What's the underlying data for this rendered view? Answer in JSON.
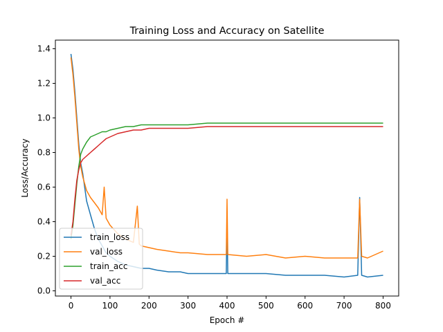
{
  "chart_data": {
    "type": "line",
    "title": "Training Loss and Accuracy on Satellite",
    "xlabel": "Epoch #",
    "ylabel": "Loss/Accuracy",
    "xlim": [
      -40,
      840
    ],
    "ylim": [
      -0.03,
      1.45
    ],
    "xticks": [
      0,
      100,
      200,
      300,
      400,
      500,
      600,
      700,
      800
    ],
    "yticks": [
      0.0,
      0.2,
      0.4,
      0.6,
      0.8,
      1.0,
      1.2,
      1.4
    ],
    "xtick_labels": [
      "0",
      "100",
      "200",
      "300",
      "400",
      "500",
      "600",
      "700",
      "800"
    ],
    "ytick_labels": [
      "0.0",
      "0.2",
      "0.4",
      "0.6",
      "0.8",
      "1.0",
      "1.2",
      "1.4"
    ],
    "grid": false,
    "legend_position": "lower-left",
    "series": [
      {
        "name": "train_loss",
        "color": "#1f77b4",
        "x": [
          0,
          5,
          10,
          15,
          20,
          25,
          30,
          35,
          40,
          50,
          60,
          70,
          80,
          90,
          100,
          120,
          140,
          160,
          180,
          200,
          220,
          250,
          280,
          300,
          350,
          398,
          400,
          402,
          450,
          500,
          550,
          600,
          650,
          700,
          735,
          740,
          745,
          760,
          800
        ],
        "y": [
          1.37,
          1.28,
          1.15,
          1.0,
          0.85,
          0.74,
          0.68,
          0.6,
          0.52,
          0.44,
          0.36,
          0.3,
          0.26,
          0.22,
          0.2,
          0.17,
          0.15,
          0.14,
          0.13,
          0.13,
          0.12,
          0.11,
          0.11,
          0.1,
          0.1,
          0.1,
          0.44,
          0.1,
          0.1,
          0.1,
          0.09,
          0.09,
          0.09,
          0.08,
          0.09,
          0.54,
          0.09,
          0.08,
          0.09
        ]
      },
      {
        "name": "val_loss",
        "color": "#ff7f0e",
        "x": [
          0,
          5,
          10,
          15,
          20,
          25,
          30,
          40,
          50,
          60,
          70,
          80,
          85,
          90,
          100,
          120,
          140,
          160,
          170,
          175,
          180,
          200,
          220,
          250,
          280,
          300,
          350,
          398,
          400,
          402,
          450,
          500,
          550,
          600,
          650,
          700,
          735,
          740,
          745,
          760,
          800
        ],
        "y": [
          1.35,
          1.25,
          1.12,
          0.97,
          0.82,
          0.72,
          0.66,
          0.58,
          0.54,
          0.51,
          0.48,
          0.44,
          0.6,
          0.42,
          0.38,
          0.33,
          0.3,
          0.28,
          0.49,
          0.27,
          0.26,
          0.25,
          0.24,
          0.23,
          0.22,
          0.22,
          0.21,
          0.21,
          0.53,
          0.21,
          0.2,
          0.21,
          0.19,
          0.2,
          0.19,
          0.19,
          0.19,
          0.53,
          0.2,
          0.19,
          0.23
        ]
      },
      {
        "name": "train_acc",
        "color": "#2ca02c",
        "x": [
          0,
          5,
          10,
          15,
          20,
          25,
          30,
          40,
          50,
          60,
          70,
          80,
          90,
          100,
          120,
          140,
          160,
          180,
          200,
          250,
          300,
          350,
          400,
          450,
          500,
          550,
          600,
          650,
          700,
          750,
          800
        ],
        "y": [
          0.3,
          0.38,
          0.5,
          0.62,
          0.72,
          0.79,
          0.82,
          0.86,
          0.89,
          0.9,
          0.91,
          0.92,
          0.92,
          0.93,
          0.94,
          0.95,
          0.95,
          0.96,
          0.96,
          0.96,
          0.96,
          0.97,
          0.97,
          0.97,
          0.97,
          0.97,
          0.97,
          0.97,
          0.97,
          0.97,
          0.97
        ]
      },
      {
        "name": "val_acc",
        "color": "#d62728",
        "x": [
          0,
          5,
          10,
          15,
          20,
          25,
          30,
          40,
          50,
          60,
          70,
          80,
          90,
          100,
          120,
          140,
          160,
          180,
          200,
          250,
          300,
          350,
          400,
          450,
          500,
          550,
          600,
          650,
          700,
          750,
          800
        ],
        "y": [
          0.32,
          0.4,
          0.53,
          0.64,
          0.7,
          0.74,
          0.76,
          0.78,
          0.8,
          0.82,
          0.84,
          0.86,
          0.88,
          0.89,
          0.91,
          0.92,
          0.93,
          0.93,
          0.94,
          0.94,
          0.94,
          0.95,
          0.95,
          0.95,
          0.95,
          0.95,
          0.95,
          0.95,
          0.95,
          0.95,
          0.95
        ]
      }
    ]
  }
}
